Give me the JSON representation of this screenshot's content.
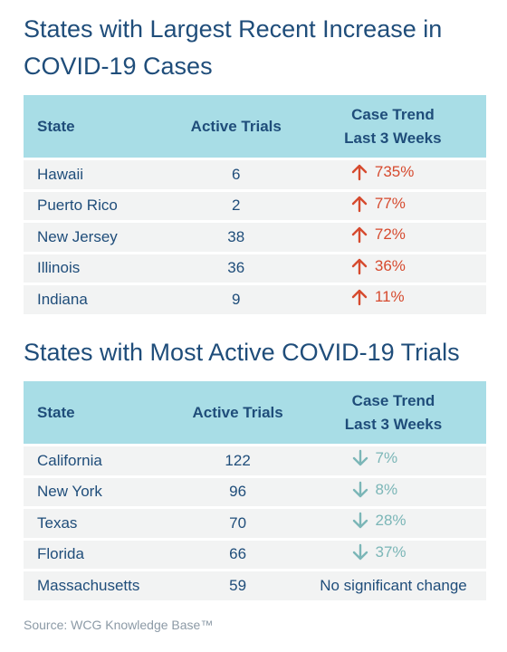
{
  "colors": {
    "header_bg": "#a8dde6",
    "row_bg": "#f2f3f3",
    "text": "#1f4d7a",
    "increase": "#d64a2e",
    "decrease": "#7bb6b7",
    "source_text": "#8c9aa6"
  },
  "icons": {
    "increase": "up-arrow-icon",
    "decrease": "down-arrow-icon"
  },
  "chart_data": [
    {
      "type": "table",
      "title": "States with Largest Recent Increase in COVID-19 Cases",
      "columns": [
        "State",
        "Active Trials",
        "Case Trend Last 3 Weeks"
      ],
      "rows": [
        {
          "state": "Hawaii",
          "trials": "6",
          "direction": "up",
          "trend": "735%"
        },
        {
          "state": "Puerto Rico",
          "trials": "2",
          "direction": "up",
          "trend": "77%"
        },
        {
          "state": "New Jersey",
          "trials": "38",
          "direction": "up",
          "trend": "72%"
        },
        {
          "state": "Illinois",
          "trials": "36",
          "direction": "up",
          "trend": "36%"
        },
        {
          "state": "Indiana",
          "trials": "9",
          "direction": "up",
          "trend": "11%"
        }
      ]
    },
    {
      "type": "table",
      "title": "States with Most Active COVID-19 Trials",
      "columns": [
        "State",
        "Active Trials",
        "Case Trend Last 3 Weeks"
      ],
      "rows": [
        {
          "state": "California",
          "trials": "122",
          "direction": "down",
          "trend": "7%"
        },
        {
          "state": "New York",
          "trials": "96",
          "direction": "down",
          "trend": "8%"
        },
        {
          "state": "Texas",
          "trials": "70",
          "direction": "down",
          "trend": "28%"
        },
        {
          "state": "Florida",
          "trials": "66",
          "direction": "down",
          "trend": "37%"
        },
        {
          "state": "Massachusetts",
          "trials": "59",
          "direction": "none",
          "trend": "No significant change"
        }
      ]
    }
  ],
  "source": "Source: WCG Knowledge Base™"
}
